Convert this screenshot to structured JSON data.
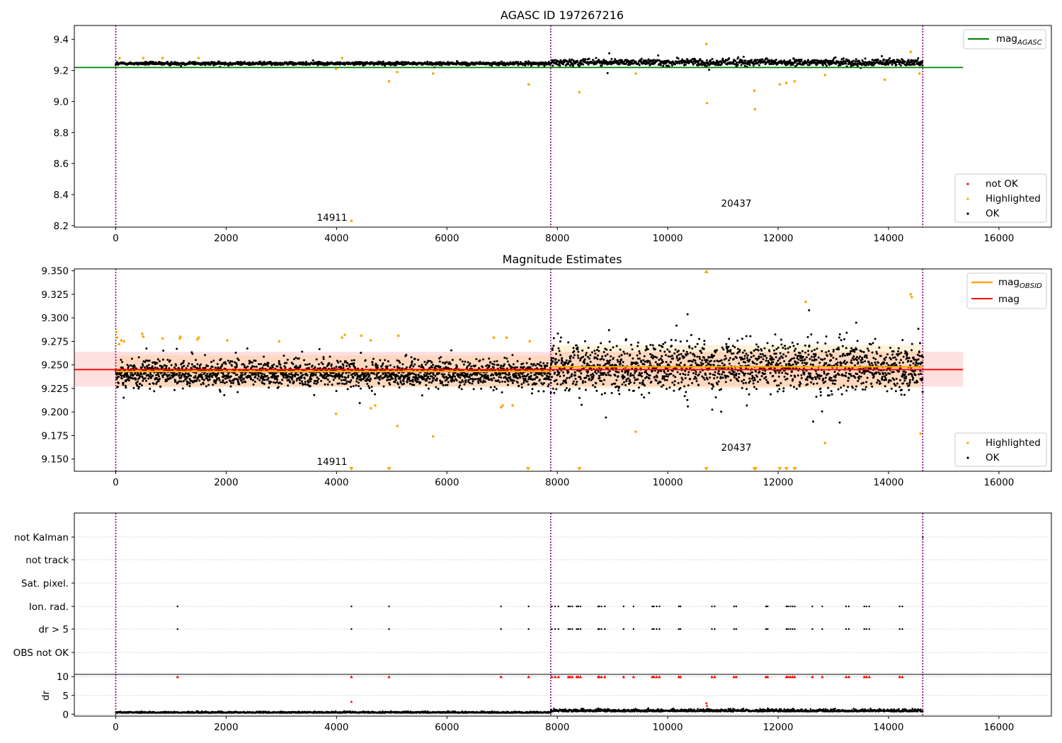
{
  "colors": {
    "ok": "#000000",
    "highlighted": "#ffa500",
    "not_ok": "#ff0000",
    "agasc_line": "#008000",
    "mag_line": "#ff0000",
    "mag_obsid_line": "#ffa500",
    "obsid_separator": "#800080",
    "gridline": "#b0b0b0"
  },
  "chart_data": [
    {
      "type": "scatter",
      "title": "AGASC ID 197267216",
      "xlim": [
        -750,
        16950
      ],
      "ylim": [
        8.19,
        9.49
      ],
      "x_ticks": [
        0,
        2000,
        4000,
        6000,
        8000,
        10000,
        12000,
        14000,
        16000
      ],
      "x_tick_labels": [
        "0",
        "2000",
        "4000",
        "6000",
        "8000",
        "10000",
        "12000",
        "14000",
        "16000"
      ],
      "y_ticks": [
        8.2,
        8.4,
        8.6,
        8.8,
        9.0,
        9.2,
        9.4
      ],
      "y_tick_labels": [
        "8.2",
        "8.4",
        "8.6",
        "8.8",
        "9.0",
        "9.2",
        "9.4"
      ],
      "obsid_boundaries": [
        0,
        7880,
        14620
      ],
      "obsid_annotations": [
        {
          "text": "14911",
          "x": 3940,
          "y": 8.18
        },
        {
          "text": "20437",
          "x": 11520,
          "y": 8.25
        }
      ],
      "lines": [
        {
          "name": "mag$_{AGASC}$",
          "y": 9.219,
          "x_range": [
            -750,
            15350
          ],
          "color": "#008000"
        }
      ],
      "legend_lines": [
        {
          "label": "mag",
          "sub": "AGASC",
          "color": "#008000"
        }
      ],
      "legend_points": [
        {
          "label": "not OK",
          "color": "#ff0000"
        },
        {
          "label": "Highlighted",
          "color": "#ffa500"
        },
        {
          "label": "OK",
          "color": "#000000"
        }
      ],
      "ok_band": [
        {
          "x0": 0,
          "x1": 7880,
          "mean": 9.241,
          "spread": 0.018
        },
        {
          "x0": 7880,
          "x1": 14620,
          "mean": 9.248,
          "spread": 0.034
        }
      ],
      "highlighted_points": [
        [
          70,
          9.28
        ],
        [
          500,
          9.28
        ],
        [
          850,
          9.28
        ],
        [
          1500,
          9.28
        ],
        [
          3990,
          9.21
        ],
        [
          4100,
          9.28
        ],
        [
          4270,
          8.23
        ],
        [
          4950,
          9.13
        ],
        [
          5100,
          9.19
        ],
        [
          5750,
          9.18
        ],
        [
          7480,
          9.11
        ],
        [
          8400,
          9.06
        ],
        [
          9420,
          9.18
        ],
        [
          10700,
          9.37
        ],
        [
          10710,
          8.99
        ],
        [
          11570,
          9.07
        ],
        [
          11580,
          8.95
        ],
        [
          12030,
          9.11
        ],
        [
          12150,
          9.12
        ],
        [
          12300,
          9.13
        ],
        [
          12850,
          9.17
        ],
        [
          13930,
          9.14
        ],
        [
          14400,
          9.32
        ],
        [
          14560,
          9.18
        ]
      ]
    },
    {
      "type": "scatter",
      "title": "Magnitude Estimates",
      "xlim": [
        -750,
        16950
      ],
      "ylim": [
        9.137,
        9.352
      ],
      "x_ticks": [
        0,
        2000,
        4000,
        6000,
        8000,
        10000,
        12000,
        14000,
        16000
      ],
      "x_tick_labels": [
        "0",
        "2000",
        "4000",
        "6000",
        "8000",
        "10000",
        "12000",
        "14000",
        "16000"
      ],
      "y_ticks": [
        9.15,
        9.175,
        9.2,
        9.225,
        9.25,
        9.275,
        9.3,
        9.325,
        9.35
      ],
      "y_tick_labels": [
        "9.150",
        "9.175",
        "9.200",
        "9.225",
        "9.250",
        "9.275",
        "9.300",
        "9.325",
        "9.350"
      ],
      "obsid_boundaries": [
        0,
        7880,
        14620
      ],
      "obsid_annotations": [
        {
          "text": "14911",
          "x": 3940,
          "y": 9.146
        },
        {
          "text": "20437",
          "x": 11520,
          "y": 9.161
        }
      ],
      "mag": {
        "value": 9.245,
        "band": [
          9.227,
          9.264
        ],
        "x_range": [
          -750,
          15350
        ]
      },
      "mag_obsid": [
        {
          "x0": 0,
          "x1": 7880,
          "value": 9.243,
          "band": [
            9.226,
            9.26
          ]
        },
        {
          "x0": 7880,
          "x1": 14620,
          "value": 9.248,
          "band": [
            9.225,
            9.271
          ]
        }
      ],
      "legend_lines": [
        {
          "label": "mag",
          "sub": "OBSID",
          "color": "#ffa500"
        },
        {
          "label": "mag",
          "sub": "",
          "color": "#ff0000"
        }
      ],
      "legend_points": [
        {
          "label": "Highlighted",
          "color": "#ffa500"
        },
        {
          "label": "OK",
          "color": "#000000"
        }
      ],
      "ok_band": [
        {
          "x0": 0,
          "x1": 7880,
          "mean": 9.241,
          "spread": 0.018
        },
        {
          "x0": 7880,
          "x1": 14620,
          "mean": 9.248,
          "spread": 0.034
        }
      ],
      "highlighted_points": [
        [
          10,
          9.285
        ],
        [
          20,
          9.279
        ],
        [
          60,
          9.272
        ],
        [
          100,
          9.276
        ],
        [
          150,
          9.275
        ],
        [
          480,
          9.283
        ],
        [
          500,
          9.28
        ],
        [
          850,
          9.278
        ],
        [
          1160,
          9.278
        ],
        [
          1170,
          9.28
        ],
        [
          1480,
          9.277
        ],
        [
          1500,
          9.279
        ],
        [
          2020,
          9.276
        ],
        [
          2960,
          9.275
        ],
        [
          3990,
          9.198
        ],
        [
          4100,
          9.279
        ],
        [
          4150,
          9.282
        ],
        [
          4450,
          9.281
        ],
        [
          4620,
          9.276
        ],
        [
          4620,
          9.204
        ],
        [
          4700,
          9.207
        ],
        [
          5100,
          9.185
        ],
        [
          5120,
          9.281
        ],
        [
          5750,
          9.174
        ],
        [
          6850,
          9.279
        ],
        [
          6980,
          9.205
        ],
        [
          7010,
          9.207
        ],
        [
          7080,
          9.279
        ],
        [
          7190,
          9.207
        ],
        [
          7500,
          9.275
        ],
        [
          9420,
          9.179
        ],
        [
          12500,
          9.317
        ],
        [
          12850,
          9.167
        ],
        [
          14400,
          9.325
        ],
        [
          14420,
          9.322
        ],
        [
          14580,
          9.177
        ]
      ],
      "clipped_markers": [
        4270,
        4950,
        7470,
        8400,
        10700,
        11570,
        11590,
        12030,
        12150,
        12300
      ],
      "top_clipped_markers": [
        10700
      ]
    },
    {
      "type": "scatter",
      "title": "",
      "xlim": [
        -750,
        16950
      ],
      "obsid_boundaries": [
        0,
        7880,
        14620
      ],
      "category_labels": [
        "not Kalman",
        "not track",
        "Sat. pixel.",
        "Ion. rad.",
        "dr > 5",
        "OBS not OK"
      ],
      "flag_events": [
        1120,
        4270,
        4950,
        6980,
        7480,
        7900,
        7960,
        8020,
        8200,
        8230,
        8270,
        8350,
        8380,
        8420,
        8740,
        8760,
        8800,
        8860,
        9200,
        9380,
        9720,
        9750,
        9800,
        9850,
        10200,
        10230,
        10800,
        10850,
        11200,
        11240,
        11780,
        11810,
        12150,
        12180,
        12220,
        12260,
        12300,
        12620,
        12800,
        13230,
        13280,
        13560,
        13600,
        13650,
        14200,
        14250
      ]
    },
    {
      "type": "scatter",
      "title": "",
      "ylabel": "dr",
      "xlim": [
        -750,
        16950
      ],
      "ylim": [
        -0.5,
        10.6
      ],
      "x_ticks": [
        0,
        2000,
        4000,
        6000,
        8000,
        10000,
        12000,
        14000,
        16000
      ],
      "x_tick_labels": [
        "0",
        "2000",
        "4000",
        "6000",
        "8000",
        "10000",
        "12000",
        "14000",
        "16000"
      ],
      "y_ticks": [
        0,
        5,
        10
      ],
      "y_tick_labels": [
        "0",
        "5",
        "10"
      ],
      "obsid_boundaries": [
        0,
        7880,
        14620
      ],
      "clipped_value": 10,
      "extra_points": [
        [
          4270,
          3.3
        ],
        [
          10700,
          2.9
        ],
        [
          10710,
          2.2
        ]
      ],
      "dr_band": [
        {
          "x0": 0,
          "x1": 7880,
          "mean": 0.35,
          "spread": 0.25
        },
        {
          "x0": 7880,
          "x1": 14620,
          "mean": 0.7,
          "spread": 0.45
        }
      ]
    }
  ]
}
